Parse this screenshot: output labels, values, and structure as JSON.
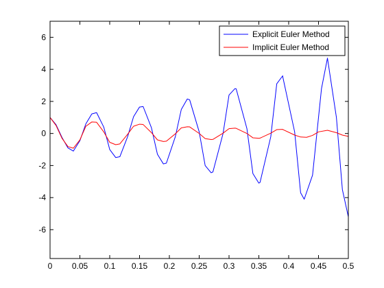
{
  "chart_data": {
    "type": "line",
    "title": "",
    "xlabel": "",
    "ylabel": "",
    "xlim": [
      0,
      0.5
    ],
    "ylim": [
      -7.8,
      7
    ],
    "x_ticks": [
      0,
      0.05,
      0.1,
      0.15,
      0.2,
      0.25,
      0.3,
      0.35,
      0.4,
      0.45,
      0.5
    ],
    "x_tick_labels": [
      "0",
      "0.05",
      "0.1",
      "0.15",
      "0.2",
      "0.25",
      "0.3",
      "0.35",
      "0.4",
      "0.45",
      "0.5"
    ],
    "y_ticks": [
      -6,
      -4,
      -2,
      0,
      2,
      4,
      6
    ],
    "y_tick_labels": [
      "-6",
      "-4",
      "-2",
      "0",
      "2",
      "4",
      "6"
    ],
    "grid": false,
    "legend": "top-right",
    "series": [
      {
        "name": "Explicit Euler Method",
        "color": "#0000ff",
        "x": [
          0,
          0.01,
          0.02,
          0.03,
          0.039,
          0.05,
          0.06,
          0.07,
          0.078,
          0.09,
          0.1,
          0.11,
          0.117,
          0.13,
          0.14,
          0.15,
          0.156,
          0.17,
          0.18,
          0.19,
          0.195,
          0.21,
          0.22,
          0.23,
          0.234,
          0.25,
          0.26,
          0.27,
          0.273,
          0.29,
          0.3,
          0.31,
          0.312,
          0.33,
          0.34,
          0.35,
          0.352,
          0.37,
          0.38,
          0.39,
          0.39,
          0.41,
          0.42,
          0.426,
          0.44,
          0.455,
          0.465,
          0.48,
          0.49,
          0.5
        ],
        "y": [
          1,
          0.55,
          -0.25,
          -0.9,
          -1.1,
          -0.45,
          0.6,
          1.22,
          1.3,
          0.4,
          -1.0,
          -1.5,
          -1.45,
          -0.2,
          1.05,
          1.65,
          1.68,
          0.35,
          -1.3,
          -1.9,
          -1.85,
          -0.2,
          1.5,
          2.15,
          2.1,
          0.1,
          -2.0,
          -2.45,
          -2.4,
          0.0,
          2.4,
          2.8,
          2.78,
          0.3,
          -2.5,
          -3.1,
          -3.05,
          -0.2,
          3.1,
          3.6,
          3.55,
          0.1,
          -3.7,
          -4.1,
          -2.6,
          2.8,
          4.7,
          1.0,
          -3.5,
          -5.2
        ]
      },
      {
        "name": "Implicit Euler Method",
        "color": "#ff0000",
        "x": [
          0,
          0.01,
          0.02,
          0.03,
          0.039,
          0.05,
          0.06,
          0.07,
          0.078,
          0.09,
          0.1,
          0.11,
          0.117,
          0.13,
          0.14,
          0.15,
          0.156,
          0.17,
          0.18,
          0.19,
          0.195,
          0.21,
          0.22,
          0.23,
          0.234,
          0.25,
          0.26,
          0.27,
          0.273,
          0.29,
          0.3,
          0.31,
          0.312,
          0.33,
          0.34,
          0.35,
          0.352,
          0.37,
          0.38,
          0.39,
          0.39,
          0.41,
          0.42,
          0.43,
          0.44,
          0.45,
          0.465,
          0.48,
          0.49,
          0.5
        ],
        "y": [
          1,
          0.5,
          -0.3,
          -0.82,
          -0.92,
          -0.4,
          0.45,
          0.72,
          0.7,
          0.1,
          -0.55,
          -0.7,
          -0.65,
          -0.05,
          0.45,
          0.58,
          0.56,
          0.05,
          -0.4,
          -0.5,
          -0.48,
          -0.02,
          0.35,
          0.42,
          0.41,
          0.0,
          -0.32,
          -0.38,
          -0.37,
          0.02,
          0.3,
          0.33,
          0.32,
          0.0,
          -0.27,
          -0.3,
          -0.29,
          0.02,
          0.24,
          0.26,
          0.25,
          -0.1,
          -0.22,
          -0.24,
          -0.12,
          0.1,
          0.2,
          0.05,
          -0.1,
          -0.18
        ]
      }
    ]
  }
}
